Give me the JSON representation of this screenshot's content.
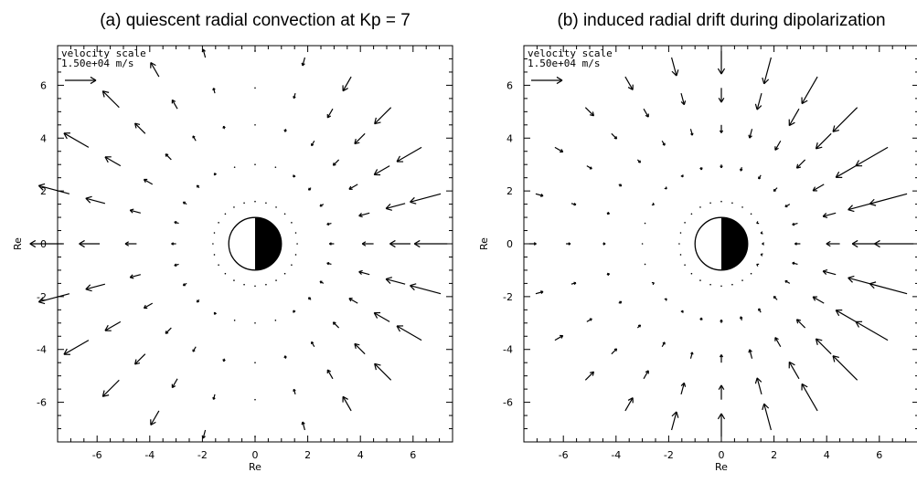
{
  "chart_data": [
    {
      "type": "scatter",
      "title": "(a) quiescent radial convection at Kp = 7",
      "xlabel": "Re",
      "ylabel": "Re",
      "xlim": [
        -7.5,
        7.5
      ],
      "ylim": [
        -7.5,
        7.5
      ],
      "xticks": [
        -6,
        -4,
        -2,
        0,
        2,
        4,
        6
      ],
      "yticks": [
        -6,
        -4,
        -2,
        0,
        2,
        4,
        6
      ],
      "xtick_labels": [
        "-6",
        "-4",
        "-2",
        "0",
        "2",
        "4",
        "6"
      ],
      "ytick_labels": [
        "-6",
        "-4",
        "-2",
        "0",
        "2",
        "4",
        "6"
      ],
      "velocity_scale_label": "velocity scale",
      "velocity_scale_value": "1.50e+04 m/s",
      "earth": "day-night disk",
      "field": {
        "radii": [
          7.3,
          5.9,
          4.5,
          3.0,
          1.6
        ],
        "angles_deg": [
          0,
          15,
          30,
          45,
          60,
          75,
          90,
          105,
          120,
          135,
          150,
          165,
          180,
          195,
          210,
          225,
          240,
          255,
          270,
          285,
          300,
          315,
          330,
          345
        ],
        "direction": "inward on dayside (x>0), outward on nightside (x<0)",
        "magnitude_trend": "largest near noon/midnight, vanishing near dawn/dusk; decreasing inward"
      }
    },
    {
      "type": "scatter",
      "title": "(b) induced radial drift during dipolarization",
      "xlabel": "Re",
      "ylabel": "Re",
      "xlim": [
        -7.5,
        7.5
      ],
      "ylim": [
        -7.5,
        7.5
      ],
      "xticks": [
        -6,
        -4,
        -2,
        0,
        2,
        4,
        6
      ],
      "yticks": [
        -6,
        -4,
        -2,
        0,
        2,
        4,
        6
      ],
      "xtick_labels": [
        "-6",
        "-4",
        "-2",
        "0",
        "2",
        "4",
        "6"
      ],
      "ytick_labels": [
        "-6",
        "-4",
        "-2",
        "0",
        "2",
        "4",
        "6"
      ],
      "velocity_scale_label": "velocity scale",
      "velocity_scale_value": "1.50e+04 m/s",
      "earth": "day-night disk",
      "field": {
        "radii": [
          7.3,
          5.9,
          4.5,
          3.0,
          1.6
        ],
        "angles_deg": [
          0,
          15,
          30,
          45,
          60,
          75,
          90,
          105,
          120,
          135,
          150,
          165,
          180,
          195,
          210,
          225,
          240,
          255,
          270,
          285,
          300,
          315,
          330,
          345
        ],
        "direction": "inward everywhere",
        "magnitude_trend": "largest on dayside, small on nightside; decreasing inward"
      }
    }
  ]
}
